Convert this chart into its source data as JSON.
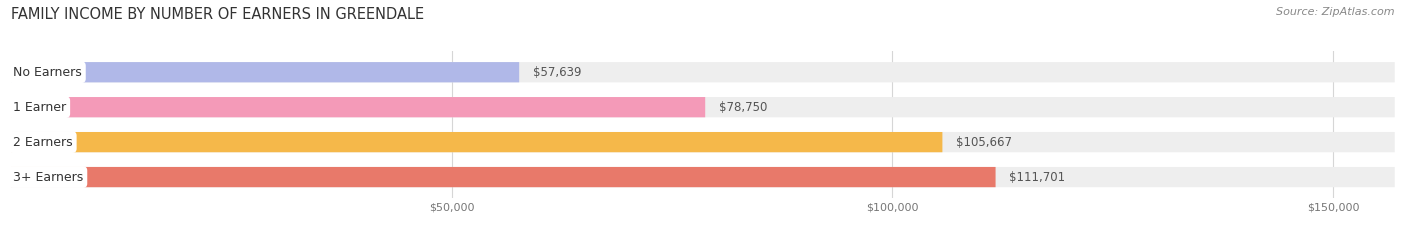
{
  "title": "FAMILY INCOME BY NUMBER OF EARNERS IN GREENDALE",
  "source": "Source: ZipAtlas.com",
  "categories": [
    "No Earners",
    "1 Earner",
    "2 Earners",
    "3+ Earners"
  ],
  "values": [
    57639,
    78750,
    105667,
    111701
  ],
  "labels": [
    "$57,639",
    "$78,750",
    "$105,667",
    "$111,701"
  ],
  "bar_colors": [
    "#b0b8e8",
    "#f49ab8",
    "#f5b84a",
    "#e8796a"
  ],
  "xmax": 157000,
  "xtick_vals": [
    50000,
    100000,
    150000
  ],
  "xticklabels": [
    "$50,000",
    "$100,000",
    "$150,000"
  ],
  "title_fontsize": 10.5,
  "source_fontsize": 8,
  "label_fontsize": 8.5,
  "cat_fontsize": 9,
  "figsize": [
    14.06,
    2.33
  ],
  "dpi": 100,
  "bg_color": "#ffffff",
  "bar_bg_full_color": "#eeeeee",
  "label_color_inside": "#ffffff",
  "label_color_outside": "#555555",
  "grid_color": "#cccccc",
  "cat_label_color": "#333333",
  "source_color": "#888888",
  "title_color": "#333333"
}
